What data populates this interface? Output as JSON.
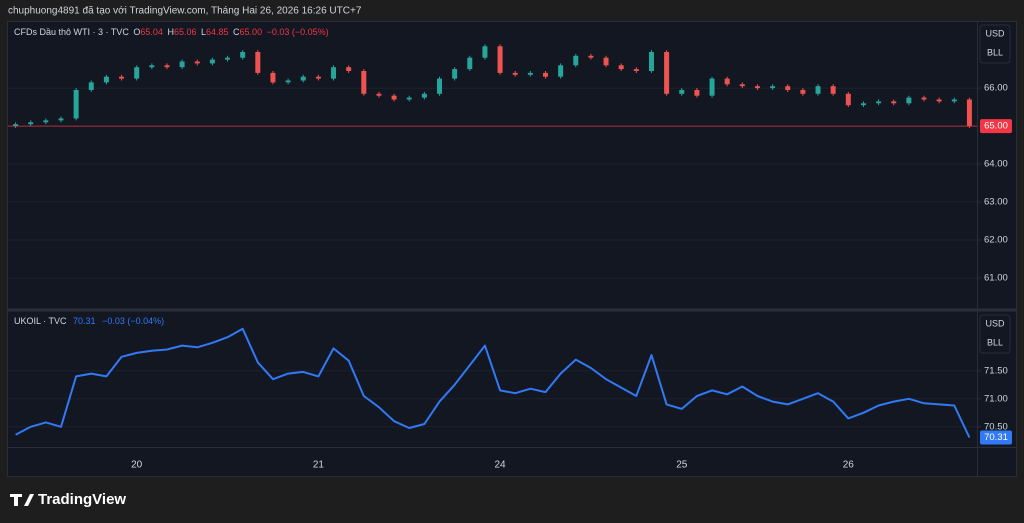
{
  "header": {
    "text": "chuphuong4891 đã tạo với TradingView.com, Tháng Hai 26, 2026 16:26 UTC+7"
  },
  "chart_data": [
    {
      "type": "candlestick",
      "title": "CFDs Dầu thô WTI · 3 · TVC",
      "ohlc_legend": [
        {
          "key": "O",
          "label": "65.04"
        },
        {
          "key": "H",
          "label": "65.06"
        },
        {
          "key": "L",
          "label": "64.85"
        },
        {
          "key": "C",
          "label": "65.00"
        }
      ],
      "change": "−0.03 (−0.05%)",
      "open": [
        65.0,
        65.05,
        65.1,
        65.15,
        65.2,
        65.95,
        66.15,
        66.3,
        66.25,
        66.55,
        66.6,
        66.55,
        66.7,
        66.65,
        66.75,
        66.8,
        66.95,
        66.4,
        66.15,
        66.2,
        66.3,
        66.25,
        66.55,
        66.45,
        65.85,
        65.8,
        65.7,
        65.75,
        65.85,
        66.25,
        66.5,
        66.8,
        67.1,
        66.4,
        66.35,
        66.4,
        66.3,
        66.6,
        66.85,
        66.8,
        66.6,
        66.5,
        66.45,
        66.95,
        65.85,
        65.95,
        65.8,
        66.25,
        66.1,
        66.05,
        66.0,
        66.05,
        65.95,
        65.85,
        66.05,
        65.85,
        65.55,
        65.6,
        65.65,
        65.6,
        65.75,
        65.7,
        65.65,
        65.7
      ],
      "high": [
        65.1,
        65.15,
        65.2,
        65.25,
        66.0,
        66.2,
        66.35,
        66.35,
        66.6,
        66.65,
        66.65,
        66.75,
        66.75,
        66.8,
        66.85,
        67.0,
        67.0,
        66.45,
        66.25,
        66.35,
        66.35,
        66.6,
        66.6,
        66.5,
        65.9,
        65.85,
        65.8,
        65.9,
        66.3,
        66.55,
        66.85,
        67.15,
        67.15,
        66.45,
        66.45,
        66.45,
        66.65,
        66.9,
        66.9,
        66.85,
        66.65,
        66.55,
        67.0,
        67.0,
        66.0,
        66.0,
        66.3,
        66.3,
        66.15,
        66.1,
        66.1,
        66.1,
        66.0,
        66.1,
        66.1,
        65.9,
        65.65,
        65.7,
        65.7,
        65.8,
        65.8,
        65.75,
        65.75,
        65.75
      ],
      "low": [
        64.95,
        65.0,
        65.05,
        65.1,
        65.15,
        65.9,
        66.1,
        66.2,
        66.2,
        66.5,
        66.5,
        66.5,
        66.6,
        66.6,
        66.7,
        66.75,
        66.35,
        66.1,
        66.1,
        66.15,
        66.2,
        66.2,
        66.4,
        65.8,
        65.75,
        65.65,
        65.65,
        65.7,
        65.8,
        66.2,
        66.45,
        66.75,
        66.35,
        66.3,
        66.3,
        66.25,
        66.25,
        66.55,
        66.75,
        66.55,
        66.45,
        66.4,
        66.4,
        65.8,
        65.8,
        65.75,
        65.75,
        66.05,
        66.0,
        65.95,
        65.95,
        65.9,
        65.8,
        65.8,
        65.8,
        65.5,
        65.5,
        65.55,
        65.55,
        65.55,
        65.65,
        65.6,
        65.6,
        64.95
      ],
      "close": [
        65.05,
        65.1,
        65.15,
        65.2,
        65.95,
        66.15,
        66.3,
        66.25,
        66.55,
        66.6,
        66.55,
        66.7,
        66.65,
        66.75,
        66.8,
        66.95,
        66.4,
        66.15,
        66.2,
        66.3,
        66.25,
        66.55,
        66.45,
        65.85,
        65.8,
        65.7,
        65.75,
        65.85,
        66.25,
        66.5,
        66.8,
        67.1,
        66.4,
        66.35,
        66.4,
        66.3,
        66.6,
        66.85,
        66.8,
        66.6,
        66.5,
        66.45,
        66.95,
        65.85,
        65.95,
        65.8,
        66.25,
        66.1,
        66.05,
        66.0,
        66.05,
        65.95,
        65.85,
        66.05,
        65.85,
        65.55,
        65.6,
        65.65,
        65.6,
        65.75,
        65.7,
        65.65,
        65.7,
        65.0
      ],
      "up_color": "#26a69a",
      "down_color": "#ef5350",
      "ylim": [
        60.21,
        67.74
      ],
      "yticks": [
        {
          "value": 61,
          "label": "61.00"
        },
        {
          "value": 62,
          "label": "62.00"
        },
        {
          "value": 63,
          "label": "63.00"
        },
        {
          "value": 64,
          "label": "64.00"
        },
        {
          "value": 65,
          "label": "65.00"
        },
        {
          "value": 66,
          "label": "66.00"
        }
      ],
      "grid": true,
      "currency": "USD",
      "unit": "BLL",
      "last_price": {
        "value": 65.0,
        "label": "65.00"
      },
      "last_color": "#f23645"
    },
    {
      "type": "line",
      "title": "UKOIL · TVC",
      "change": "−0.03 (−0.04%)",
      "color": "#3179f5",
      "categories": [
        null,
        null,
        null,
        null,
        null,
        null,
        null,
        null,
        "20",
        null,
        null,
        null,
        null,
        null,
        null,
        null,
        null,
        null,
        null,
        null,
        "21",
        null,
        null,
        null,
        null,
        null,
        null,
        null,
        null,
        null,
        null,
        null,
        "24",
        null,
        null,
        null,
        null,
        null,
        null,
        null,
        null,
        null,
        null,
        null,
        "25",
        null,
        null,
        null,
        null,
        null,
        null,
        null,
        null,
        null,
        null,
        "26",
        null,
        null,
        null,
        null,
        null,
        null,
        null,
        null
      ],
      "values": [
        70.36,
        70.5,
        70.58,
        70.5,
        71.4,
        71.45,
        71.4,
        71.75,
        71.82,
        71.86,
        71.88,
        71.95,
        71.92,
        72.0,
        72.1,
        72.25,
        71.65,
        71.35,
        71.45,
        71.48,
        71.4,
        71.9,
        71.68,
        71.05,
        70.85,
        70.6,
        70.48,
        70.55,
        70.95,
        71.25,
        71.6,
        71.95,
        71.15,
        71.1,
        71.18,
        71.12,
        71.45,
        71.7,
        71.55,
        71.35,
        71.2,
        71.05,
        71.78,
        70.9,
        70.82,
        71.05,
        71.15,
        71.08,
        71.22,
        71.05,
        70.95,
        70.9,
        71.0,
        71.1,
        70.95,
        70.65,
        70.75,
        70.88,
        70.95,
        71.0,
        70.92,
        70.9,
        70.88,
        70.31
      ],
      "ylim": [
        70.14,
        72.55
      ],
      "yticks": [
        {
          "value": 70.5,
          "label": "70.50"
        },
        {
          "value": 71,
          "label": "71.00"
        },
        {
          "value": 71.5,
          "label": "71.50"
        }
      ],
      "grid": true,
      "currency": "USD",
      "unit": "BLL",
      "last_price": {
        "value": 70.31,
        "label": "70.31"
      },
      "last_color": "#3179f5"
    }
  ],
  "footer": {
    "brand": "TradingView"
  }
}
